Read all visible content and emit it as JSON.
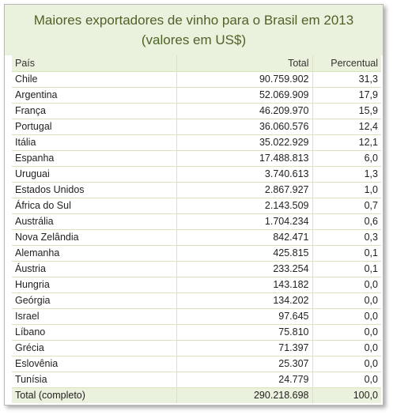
{
  "title": {
    "line1": "Maiores exportadores de vinho para o Brasil em 2013",
    "line2": "(valores em US$)"
  },
  "table": {
    "headers": [
      "País",
      "Total",
      "Percentual"
    ],
    "rows": [
      {
        "country": "Chile",
        "total": "90.759.902",
        "percent": "31,3"
      },
      {
        "country": "Argentina",
        "total": "52.069.909",
        "percent": "17,9"
      },
      {
        "country": "França",
        "total": "46.209.970",
        "percent": "15,9"
      },
      {
        "country": "Portugal",
        "total": "36.060.576",
        "percent": "12,4"
      },
      {
        "country": "Itália",
        "total": "35.022.929",
        "percent": "12,1"
      },
      {
        "country": "Espanha",
        "total": "17.488.813",
        "percent": "6,0"
      },
      {
        "country": "Uruguai",
        "total": "3.740.613",
        "percent": "1,3"
      },
      {
        "country": "Estados Unidos",
        "total": "2.867.927",
        "percent": "1,0"
      },
      {
        "country": "África do Sul",
        "total": "2.143.509",
        "percent": "0,7"
      },
      {
        "country": "Austrália",
        "total": "1.704.234",
        "percent": "0,6"
      },
      {
        "country": "Nova Zelândia",
        "total": "842.471",
        "percent": "0,3"
      },
      {
        "country": "Alemanha",
        "total": "425.815",
        "percent": "0,1"
      },
      {
        "country": "Áustria",
        "total": "233.254",
        "percent": "0,1"
      },
      {
        "country": "Hungria",
        "total": "143.182",
        "percent": "0,0"
      },
      {
        "country": "Geórgia",
        "total": "134.202",
        "percent": "0,0"
      },
      {
        "country": "Israel",
        "total": "97.645",
        "percent": "0,0"
      },
      {
        "country": "Líbano",
        "total": "75.810",
        "percent": "0,0"
      },
      {
        "country": "Grécia",
        "total": "71.397",
        "percent": "0,0"
      },
      {
        "country": "Eslovênia",
        "total": "25.307",
        "percent": "0,0"
      },
      {
        "country": "Tunísia",
        "total": "24.779",
        "percent": "0,0"
      }
    ],
    "footer": {
      "country": "Total (completo)",
      "total": "290.218.698",
      "percent": "100,0"
    }
  },
  "colors": {
    "title_text": "#4f6228",
    "header_background": "#eaf1dd",
    "grid_line": "#d8e4bc"
  }
}
